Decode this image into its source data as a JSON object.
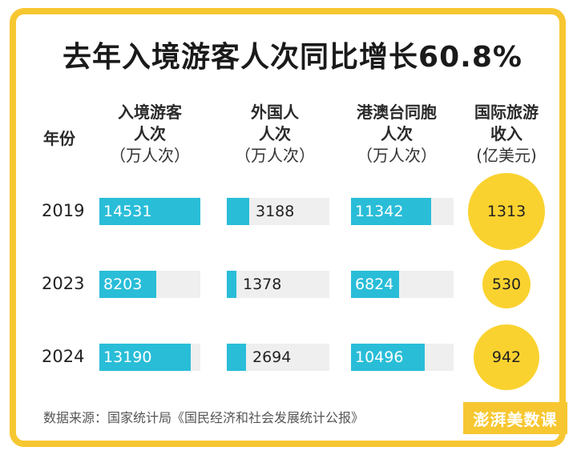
{
  "title": "去年入境游客人次同比增长60.8%",
  "headers": {
    "year": "年份",
    "col1": {
      "line1": "入境游客",
      "line2": "人次",
      "unit": "（万人次）"
    },
    "col2": {
      "line1": "外国人",
      "line2": "人次",
      "unit": "（万人次）"
    },
    "col3": {
      "line1": "港澳台同胞",
      "line2": "人次",
      "unit": "（万人次）"
    },
    "col4": {
      "line1": "国际旅游",
      "line2": "收入",
      "unit": "(亿美元)"
    }
  },
  "chart_data": {
    "type": "table",
    "title": "去年入境游客人次同比增长60.8%",
    "categories": [
      "2019",
      "2023",
      "2024"
    ],
    "series": [
      {
        "name": "入境游客人次（万人次）",
        "values": [
          14531,
          8203,
          13190
        ]
      },
      {
        "name": "外国人人次（万人次）",
        "values": [
          3188,
          1378,
          2694
        ]
      },
      {
        "name": "港澳台同胞人次（万人次）",
        "values": [
          11342,
          6824,
          10496
        ]
      },
      {
        "name": "国际旅游收入（亿美元）",
        "values": [
          1313,
          530,
          942
        ]
      }
    ],
    "bar_scale_max": [
      14531,
      14531,
      14531
    ],
    "colors": {
      "bar": "#29bdd8",
      "track": "#efefef",
      "bubble": "#fad22f",
      "border": "#f7c731"
    }
  },
  "source": "数据来源：国家统计局《国民经济和社会发展统计公报》",
  "logo_text": "澎湃美数课"
}
